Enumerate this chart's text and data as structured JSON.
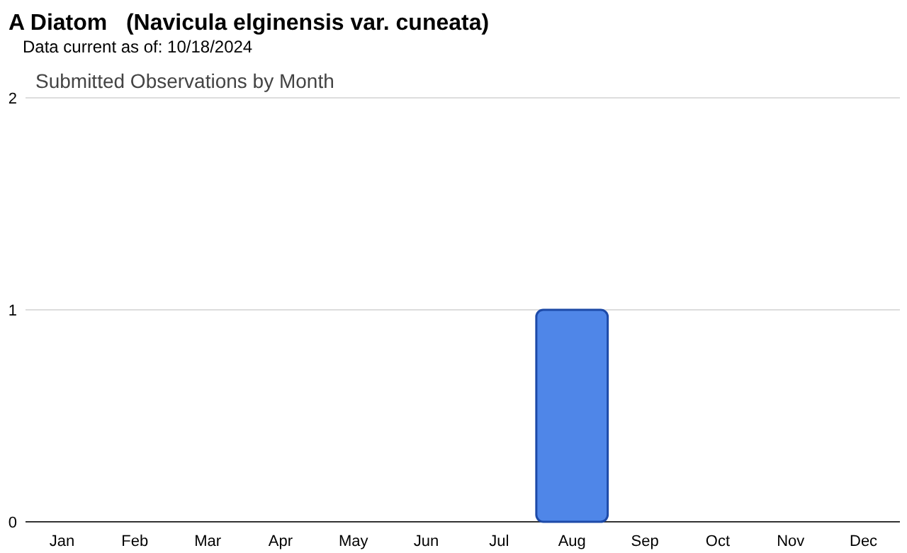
{
  "chart_data": {
    "type": "bar",
    "title": "A Diatom   (Navicula elginensis var. cuneata)",
    "subtitle": "Data current as of: 10/18/2024",
    "annotations": [
      "Submitted Observations by Month"
    ],
    "categories": [
      "Jan",
      "Feb",
      "Mar",
      "Apr",
      "May",
      "Jun",
      "Jul",
      "Aug",
      "Sep",
      "Oct",
      "Nov",
      "Dec"
    ],
    "values": [
      0,
      0,
      0,
      0,
      0,
      0,
      0,
      1,
      0,
      0,
      0,
      0
    ],
    "color": "#4f86e8",
    "ylim": [
      0,
      2
    ],
    "yticks": [
      0,
      1,
      2
    ],
    "grid": "y"
  }
}
